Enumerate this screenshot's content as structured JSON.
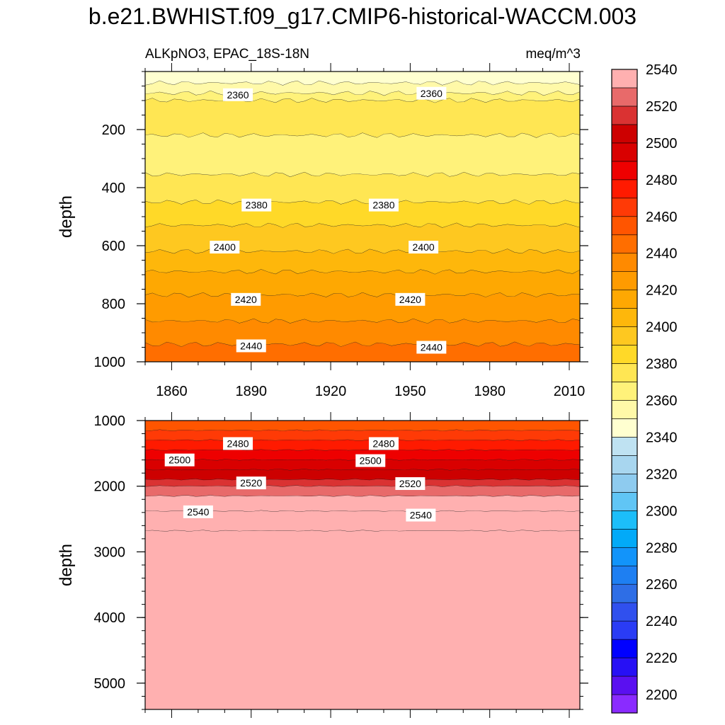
{
  "title": "b.e21.BWHIST.f09_g17.CMIP6-historical-WACCM.003",
  "subtitle_left": "ALKpNO3, EPAC_18S-18N",
  "subtitle_right": "meq/m^3",
  "colors": {
    "levels": [
      "#8a2bff",
      "#5a10f0",
      "#2710f5",
      "#0000ff",
      "#2a3cf5",
      "#3050ee",
      "#2e6ee6",
      "#1e7ff2",
      "#1294fa",
      "#02aaf8",
      "#1cbef9",
      "#60c5f5",
      "#8ecbef",
      "#a8d6ef",
      "#bfe2f2",
      "#ffffd0",
      "#fff9a8",
      "#fff27a",
      "#ffe653",
      "#ffd928",
      "#fec820",
      "#feb70b",
      "#fea802",
      "#ff9b00",
      "#ff8a00",
      "#ff6e00",
      "#ff5500",
      "#ff3a06",
      "#ff1a00",
      "#ee0000",
      "#d90000",
      "#cd0000",
      "#da3232",
      "#e86a6a",
      "#ffb0b0"
    ]
  },
  "chart_data": [
    {
      "panel": "upper",
      "type": "heatmap",
      "subtype": "depth-time contour",
      "xlabel": "",
      "ylabel": "depth",
      "xlim": [
        1850,
        2014
      ],
      "ylim": [
        1000,
        0
      ],
      "x_ticks": [
        "1860",
        "1890",
        "1920",
        "1950",
        "1980",
        "2010"
      ],
      "y_ticks": [
        "200",
        "400",
        "600",
        "800",
        "1000"
      ],
      "bands": [
        {
          "value": 2340,
          "y_top": 0,
          "y_bottom": 40
        },
        {
          "value": 2350,
          "y_top": 40,
          "y_bottom": 75
        },
        {
          "value": 2360,
          "y_top": 75,
          "y_bottom": 100
        },
        {
          "value": 2370,
          "y_top": 100,
          "y_bottom": 220
        },
        {
          "value": 2360,
          "y_top": 220,
          "y_bottom": 355
        },
        {
          "value": 2370,
          "y_top": 355,
          "y_bottom": 450
        },
        {
          "value": 2380,
          "y_top": 450,
          "y_bottom": 530
        },
        {
          "value": 2390,
          "y_top": 530,
          "y_bottom": 620
        },
        {
          "value": 2400,
          "y_top": 620,
          "y_bottom": 690
        },
        {
          "value": 2410,
          "y_top": 690,
          "y_bottom": 770
        },
        {
          "value": 2420,
          "y_top": 770,
          "y_bottom": 860
        },
        {
          "value": 2430,
          "y_top": 860,
          "y_bottom": 940
        },
        {
          "value": 2440,
          "y_top": 940,
          "y_bottom": 1000
        }
      ],
      "contour_labels": [
        {
          "text": "2360",
          "x": 1885,
          "y": 80
        },
        {
          "text": "2360",
          "x": 1958,
          "y": 75
        },
        {
          "text": "2380",
          "x": 1892,
          "y": 460
        },
        {
          "text": "2380",
          "x": 1940,
          "y": 460
        },
        {
          "text": "2400",
          "x": 1880,
          "y": 605
        },
        {
          "text": "2400",
          "x": 1955,
          "y": 605
        },
        {
          "text": "2420",
          "x": 1888,
          "y": 785
        },
        {
          "text": "2420",
          "x": 1950,
          "y": 785
        },
        {
          "text": "2440",
          "x": 1890,
          "y": 945
        },
        {
          "text": "2440",
          "x": 1958,
          "y": 950
        }
      ]
    },
    {
      "panel": "lower",
      "type": "heatmap",
      "subtype": "depth-time contour",
      "xlabel": "",
      "ylabel": "depth",
      "xlim": [
        1850,
        2014
      ],
      "ylim": [
        5400,
        1000
      ],
      "y_ticks": [
        "1000",
        "2000",
        "3000",
        "4000",
        "5000"
      ],
      "bands": [
        {
          "value": 2450,
          "y_top": 1000,
          "y_bottom": 1150
        },
        {
          "value": 2460,
          "y_top": 1150,
          "y_bottom": 1300
        },
        {
          "value": 2470,
          "y_top": 1300,
          "y_bottom": 1450
        },
        {
          "value": 2480,
          "y_top": 1450,
          "y_bottom": 1600
        },
        {
          "value": 2490,
          "y_top": 1600,
          "y_bottom": 1750
        },
        {
          "value": 2500,
          "y_top": 1750,
          "y_bottom": 1900
        },
        {
          "value": 2510,
          "y_top": 1900,
          "y_bottom": 2000
        },
        {
          "value": 2520,
          "y_top": 2000,
          "y_bottom": 2150
        },
        {
          "value": 2530,
          "y_top": 2150,
          "y_bottom": 2380
        },
        {
          "value": 2540,
          "y_top": 2380,
          "y_bottom": 2680
        },
        {
          "value": 2550,
          "y_top": 2680,
          "y_bottom": 5400
        }
      ],
      "contour_labels": [
        {
          "text": "2480",
          "x": 1885,
          "y": 1350
        },
        {
          "text": "2480",
          "x": 1940,
          "y": 1350
        },
        {
          "text": "2500",
          "x": 1863,
          "y": 1600
        },
        {
          "text": "2500",
          "x": 1935,
          "y": 1610
        },
        {
          "text": "2520",
          "x": 1890,
          "y": 1950
        },
        {
          "text": "2520",
          "x": 1950,
          "y": 1960
        },
        {
          "text": "2540",
          "x": 1870,
          "y": 2390
        },
        {
          "text": "2540",
          "x": 1954,
          "y": 2440
        }
      ]
    }
  ],
  "colorbar": {
    "labels": [
      "2200",
      "2220",
      "2240",
      "2260",
      "2280",
      "2300",
      "2320",
      "2340",
      "2360",
      "2380",
      "2400",
      "2420",
      "2440",
      "2460",
      "2480",
      "2500",
      "2520",
      "2540"
    ]
  }
}
